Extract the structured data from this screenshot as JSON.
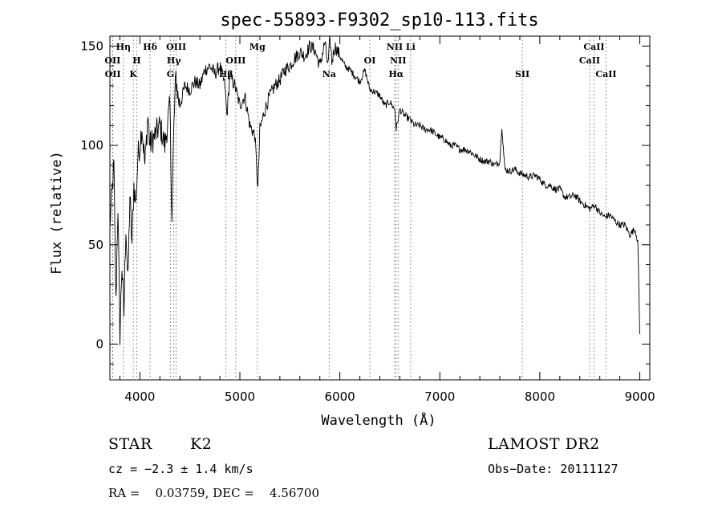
{
  "chart_data": {
    "type": "line",
    "title": "spec-55893-F9302_sp10-113.fits",
    "xlabel": "Wavelength (Å)",
    "ylabel": "Flux (relative)",
    "xlim": [
      3700,
      9100
    ],
    "ylim": [
      -18,
      155
    ],
    "x_ticks": [
      4000,
      5000,
      6000,
      7000,
      8000,
      9000
    ],
    "y_ticks": [
      0,
      50,
      100,
      150
    ],
    "grid": false,
    "series": [
      {
        "x": [
          3700,
          3740,
          3760,
          3780,
          3800,
          3820,
          3840,
          3860,
          3880,
          3900,
          3920,
          3940,
          3960,
          3980,
          4000,
          4020,
          4050,
          4080,
          4100,
          4150,
          4200,
          4250,
          4300,
          4320,
          4340,
          4360,
          4380,
          4400,
          4450,
          4500,
          4550,
          4600,
          4650,
          4700,
          4750,
          4800,
          4850,
          4870,
          4900,
          4950,
          5000,
          5050,
          5100,
          5150,
          5180,
          5200,
          5250,
          5300,
          5350,
          5400,
          5450,
          5500,
          5550,
          5600,
          5650,
          5700,
          5750,
          5800,
          5850,
          5880,
          5890,
          5900,
          5920,
          5950,
          6000,
          6050,
          6100,
          6150,
          6200,
          6250,
          6300,
          6350,
          6400,
          6450,
          6500,
          6550,
          6563,
          6600,
          6650,
          6700,
          6750,
          6800,
          6850,
          6900,
          6950,
          7000,
          7050,
          7100,
          7150,
          7200,
          7250,
          7300,
          7350,
          7400,
          7450,
          7500,
          7550,
          7600,
          7620,
          7650,
          7700,
          7750,
          7800,
          7850,
          7900,
          7950,
          8000,
          8050,
          8100,
          8150,
          8200,
          8250,
          8300,
          8350,
          8400,
          8450,
          8500,
          8550,
          8600,
          8650,
          8700,
          8750,
          8800,
          8850,
          8900,
          8950,
          8980,
          9000
        ],
        "y": [
          60,
          90,
          20,
          70,
          5,
          40,
          15,
          60,
          30,
          75,
          50,
          80,
          70,
          95,
          100,
          110,
          90,
          115,
          100,
          105,
          110,
          100,
          120,
          65,
          110,
          135,
          125,
          120,
          130,
          128,
          132,
          130,
          138,
          140,
          136,
          140,
          130,
          115,
          135,
          130,
          120,
          125,
          110,
          105,
          78,
          108,
          118,
          125,
          130,
          133,
          138,
          140,
          144,
          147,
          145,
          150,
          148,
          140,
          152,
          140,
          145,
          155,
          142,
          150,
          145,
          140,
          138,
          135,
          132,
          138,
          128,
          127,
          125,
          120,
          122,
          118,
          108,
          118,
          115,
          113,
          110,
          110,
          108,
          108,
          106,
          104,
          103,
          100,
          100,
          98,
          98,
          97,
          95,
          93,
          92,
          92,
          90,
          92,
          110,
          88,
          87,
          88,
          86,
          85,
          84,
          85,
          83,
          80,
          80,
          78,
          78,
          74,
          74,
          75,
          72,
          70,
          68,
          70,
          66,
          64,
          65,
          62,
          60,
          60,
          55,
          58,
          52,
          5
        ]
      }
    ],
    "line_labels": [
      {
        "name": "OII",
        "wavelength": 3727,
        "row": 2
      },
      {
        "name": "OII",
        "wavelength": 3729,
        "row": 3
      },
      {
        "name": "Hη",
        "wavelength": 3835,
        "row": 1
      },
      {
        "name": "H",
        "wavelength": 3968,
        "row": 2
      },
      {
        "name": "K",
        "wavelength": 3934,
        "row": 3
      },
      {
        "name": "Hδ",
        "wavelength": 4102,
        "row": 1
      },
      {
        "name": "OIII",
        "wavelength": 4363,
        "row": 1
      },
      {
        "name": "Hγ",
        "wavelength": 4340,
        "row": 2
      },
      {
        "name": "G",
        "wavelength": 4305,
        "row": 3
      },
      {
        "name": "OIII",
        "wavelength": 4959,
        "row": 2
      },
      {
        "name": "Hβ",
        "wavelength": 4861,
        "row": 3
      },
      {
        "name": "Mg",
        "wavelength": 5175,
        "row": 1
      },
      {
        "name": "Na",
        "wavelength": 5893,
        "row": 3
      },
      {
        "name": "OI",
        "wavelength": 6300,
        "row": 2
      },
      {
        "name": "NII",
        "wavelength": 6548,
        "row": 1
      },
      {
        "name": "NII",
        "wavelength": 6583,
        "row": 2
      },
      {
        "name": "Hα",
        "wavelength": 6563,
        "row": 3
      },
      {
        "name": "Li",
        "wavelength": 6708,
        "row": 1
      },
      {
        "name": "SII",
        "wavelength": 7825,
        "row": 3
      },
      {
        "name": "CaII",
        "wavelength": 8542,
        "row": 1
      },
      {
        "name": "CaII",
        "wavelength": 8498,
        "row": 2
      },
      {
        "name": "CaII",
        "wavelength": 8662,
        "row": 3
      }
    ]
  },
  "info": {
    "class": "STAR",
    "subclass": "K2",
    "survey": "LAMOST DR2",
    "cz": "cz = −2.3 ± 1.4 km/s",
    "obs_date": "Obs−Date: 20111127",
    "coords": "RA =    0.03759, DEC =    4.56700"
  }
}
